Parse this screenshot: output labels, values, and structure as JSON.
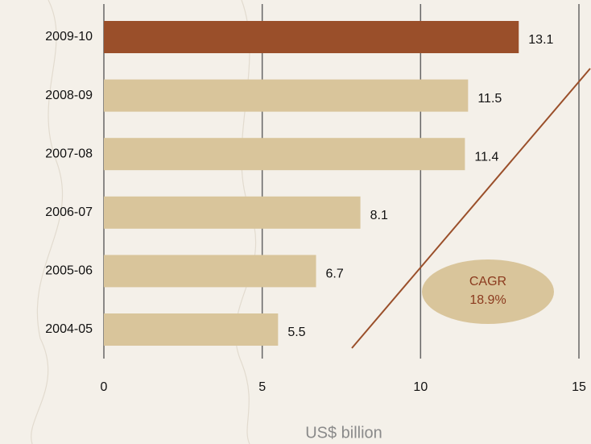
{
  "chart_data": {
    "type": "hbar",
    "categories": [
      "2009-10",
      "2008-09",
      "2007-08",
      "2006-07",
      "2005-06",
      "2004-05"
    ],
    "values": [
      13.1,
      11.5,
      11.4,
      8.1,
      6.7,
      5.5
    ],
    "colors": [
      "#9a4f2a",
      "#d9c59b",
      "#d9c59b",
      "#d9c59b",
      "#d9c59b",
      "#d9c59b"
    ],
    "xlim": [
      0,
      15
    ],
    "xticks": [
      0,
      5,
      10,
      15
    ],
    "grid": true,
    "xlabel": "US$ billion",
    "annotation": {
      "title": "CAGR",
      "text": "18.9%"
    }
  }
}
